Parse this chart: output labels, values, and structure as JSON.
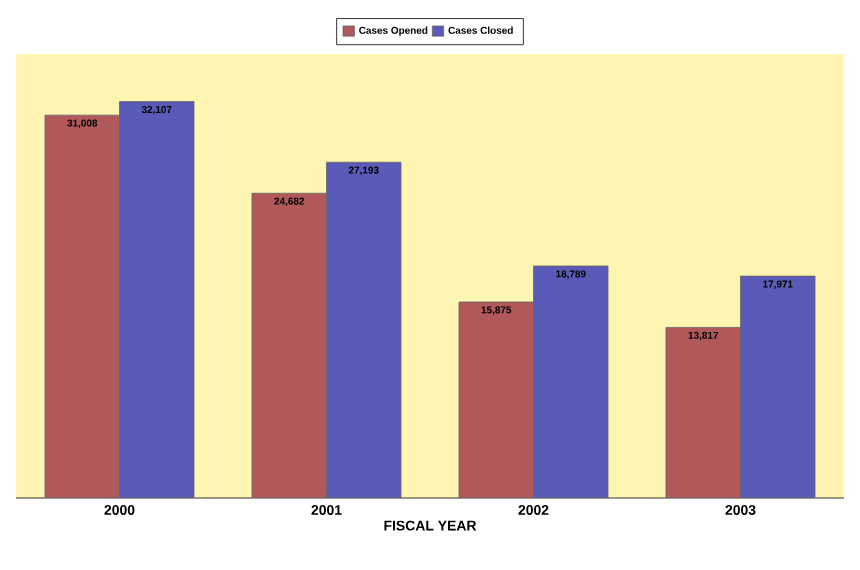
{
  "chart_data": {
    "type": "bar",
    "xlabel": "FISCAL YEAR",
    "categories": [
      "2000",
      "2001",
      "2002",
      "2003"
    ],
    "series": [
      {
        "name": "Cases Opened",
        "color": "#b0585a",
        "values": [
          31008,
          24682,
          15875,
          13817
        ],
        "value_labels": [
          "31,008",
          "24,682",
          "15,875",
          "13,817"
        ]
      },
      {
        "name": "Cases Closed",
        "color": "#5a5ab8",
        "values": [
          32107,
          27193,
          18789,
          17971
        ],
        "value_labels": [
          "32,107",
          "27,193",
          "18,789",
          "17,971"
        ]
      }
    ],
    "legend": "top"
  }
}
